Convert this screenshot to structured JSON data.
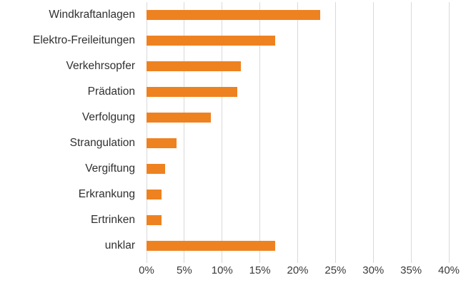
{
  "chart_data": {
    "type": "bar",
    "orientation": "horizontal",
    "title": "",
    "xlabel": "",
    "ylabel": "",
    "categories": [
      "Windkraftanlagen",
      "Elektro-Freileitungen",
      "Verkehrsopfer",
      "Prädation",
      "Verfolgung",
      "Strangulation",
      "Vergiftung",
      "Erkrankung",
      "Ertrinken",
      "unklar"
    ],
    "values": [
      23,
      17,
      12.5,
      12,
      8.5,
      4,
      2.5,
      2,
      2,
      17
    ],
    "xlim": [
      0,
      40
    ],
    "x_tick_step": 5,
    "x_tick_labels": [
      "0%",
      "5%",
      "10%",
      "15%",
      "20%",
      "25%",
      "30%",
      "35%",
      "40%"
    ],
    "grid": true,
    "legend": false,
    "colors": {
      "bar": "#ee8220",
      "gridline": "#d9d9d9",
      "label_text": "#303030",
      "axis_text": "#3a3a3a",
      "background": "#ffffff"
    }
  }
}
